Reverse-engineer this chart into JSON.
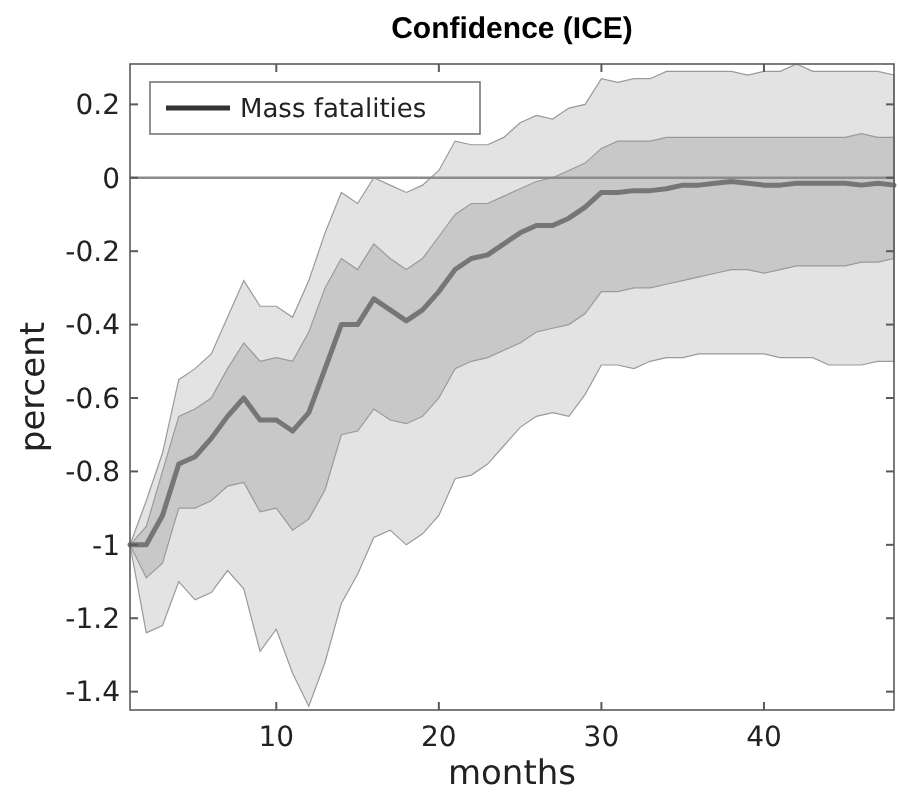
{
  "chart_data": {
    "type": "line",
    "title": "Confidence (ICE)",
    "xlabel": "months",
    "ylabel": "percent",
    "x": [
      1,
      2,
      3,
      4,
      5,
      6,
      7,
      8,
      9,
      10,
      11,
      12,
      13,
      14,
      15,
      16,
      17,
      18,
      19,
      20,
      21,
      22,
      23,
      24,
      25,
      26,
      27,
      28,
      29,
      30,
      31,
      32,
      33,
      34,
      35,
      36,
      37,
      38,
      39,
      40,
      41,
      42,
      43,
      44,
      45,
      46,
      47,
      48
    ],
    "series": [
      {
        "name": "Mass fatalities",
        "color": "#767676",
        "values": [
          -1,
          -1,
          -0.92,
          -0.78,
          -0.76,
          -0.71,
          -0.65,
          -0.6,
          -0.66,
          -0.66,
          -0.69,
          -0.64,
          -0.52,
          -0.4,
          -0.4,
          -0.33,
          -0.36,
          -0.39,
          -0.36,
          -0.31,
          -0.25,
          -0.22,
          -0.21,
          -0.18,
          -0.15,
          -0.13,
          -0.13,
          -0.11,
          -0.08,
          -0.04,
          -0.04,
          -0.035,
          -0.035,
          -0.03,
          -0.02,
          -0.02,
          -0.015,
          -0.01,
          -0.015,
          -0.02,
          -0.02,
          -0.015,
          -0.015,
          -0.015,
          -0.015,
          -0.02,
          -0.015,
          -0.02
        ]
      },
      {
        "color": "#e3e3e3",
        "values": [
          null,
          null,
          null,
          null,
          null,
          null,
          null,
          null,
          null,
          null,
          null,
          null,
          null,
          null,
          null,
          null,
          null,
          null,
          null,
          null,
          null,
          null,
          null,
          null,
          null,
          null,
          null,
          null,
          null,
          null,
          null,
          null,
          null,
          null,
          null,
          null,
          null,
          null,
          null,
          null,
          null,
          null,
          null,
          null,
          null,
          null,
          null,
          null
        ],
        "upper": [
          -1,
          -0.88,
          -0.75,
          -0.55,
          -0.52,
          -0.48,
          -0.38,
          -0.28,
          -0.35,
          -0.35,
          -0.38,
          -0.28,
          -0.15,
          -0.04,
          -0.07,
          0,
          -0.02,
          -0.04,
          -0.02,
          0.02,
          0.1,
          0.09,
          0.09,
          0.11,
          0.15,
          0.17,
          0.16,
          0.19,
          0.2,
          0.27,
          0.26,
          0.27,
          0.27,
          0.29,
          0.29,
          0.29,
          0.29,
          0.29,
          0.28,
          0.29,
          0.29,
          0.31,
          0.29,
          0.29,
          0.29,
          0.29,
          0.29,
          0.28
        ],
        "lower": [
          -1,
          -1.24,
          -1.22,
          -1.1,
          -1.15,
          -1.13,
          -1.07,
          -1.12,
          -1.29,
          -1.23,
          -1.35,
          -1.44,
          -1.32,
          -1.16,
          -1.08,
          -0.98,
          -0.96,
          -1,
          -0.97,
          -0.92,
          -0.82,
          -0.81,
          -0.78,
          -0.73,
          -0.68,
          -0.65,
          -0.64,
          -0.65,
          -0.59,
          -0.51,
          -0.51,
          -0.52,
          -0.5,
          -0.49,
          -0.49,
          -0.48,
          -0.48,
          -0.48,
          -0.48,
          -0.48,
          -0.49,
          -0.49,
          -0.49,
          -0.51,
          -0.51,
          -0.51,
          -0.5,
          -0.5
        ]
      },
      {
        "color": "#c8c8c8",
        "values": [
          null,
          null,
          null,
          null,
          null,
          null,
          null,
          null,
          null,
          null,
          null,
          null,
          null,
          null,
          null,
          null,
          null,
          null,
          null,
          null,
          null,
          null,
          null,
          null,
          null,
          null,
          null,
          null,
          null,
          null,
          null,
          null,
          null,
          null,
          null,
          null,
          null,
          null,
          null,
          null,
          null,
          null,
          null,
          null,
          null,
          null,
          null,
          null
        ],
        "upper": [
          -1,
          -0.95,
          -0.8,
          -0.65,
          -0.63,
          -0.6,
          -0.52,
          -0.45,
          -0.5,
          -0.49,
          -0.5,
          -0.42,
          -0.3,
          -0.22,
          -0.25,
          -0.18,
          -0.22,
          -0.25,
          -0.22,
          -0.16,
          -0.1,
          -0.07,
          -0.07,
          -0.05,
          -0.03,
          -0.01,
          0,
          0.02,
          0.04,
          0.08,
          0.1,
          0.1,
          0.1,
          0.11,
          0.11,
          0.11,
          0.11,
          0.11,
          0.11,
          0.11,
          0.11,
          0.11,
          0.11,
          0.11,
          0.11,
          0.12,
          0.11,
          0.11
        ],
        "lower": [
          -1,
          -1.09,
          -1.05,
          -0.9,
          -0.9,
          -0.88,
          -0.84,
          -0.83,
          -0.91,
          -0.9,
          -0.96,
          -0.93,
          -0.85,
          -0.7,
          -0.69,
          -0.63,
          -0.66,
          -0.67,
          -0.65,
          -0.6,
          -0.52,
          -0.5,
          -0.49,
          -0.47,
          -0.45,
          -0.42,
          -0.41,
          -0.4,
          -0.37,
          -0.31,
          -0.31,
          -0.3,
          -0.3,
          -0.29,
          -0.28,
          -0.27,
          -0.26,
          -0.25,
          -0.25,
          -0.26,
          -0.25,
          -0.24,
          -0.24,
          -0.24,
          -0.24,
          -0.23,
          -0.23,
          -0.22
        ]
      }
    ],
    "xlim": [
      1,
      48
    ],
    "ylim": [
      -1.45,
      0.31
    ],
    "xticks": [
      10,
      20,
      30,
      40
    ],
    "yticks": [
      -1.4,
      -1.2,
      -1,
      -0.8,
      -0.6,
      -0.4,
      -0.2,
      0,
      0.2
    ],
    "ref_lines": [
      {
        "axis": "y",
        "value": 0,
        "color": "#8c8c8c"
      }
    ],
    "legend": "top left",
    "grid": false,
    "line_style": "solid",
    "marker": "none"
  }
}
